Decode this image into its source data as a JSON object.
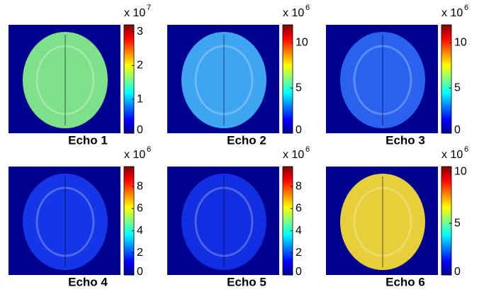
{
  "panels": [
    {
      "label": "Echo 1",
      "exponent_label": "x 10",
      "exponent": "7",
      "clim": [
        0,
        3.2
      ],
      "ticks": [
        0,
        1,
        2,
        3
      ],
      "color": "#7fe08a"
    },
    {
      "label": "Echo 2",
      "exponent_label": "x 10",
      "exponent": "6",
      "clim": [
        0,
        12
      ],
      "ticks": [
        0,
        5,
        10
      ],
      "color": "#3fa4f2"
    },
    {
      "label": "Echo 3",
      "exponent_label": "x 10",
      "exponent": "6",
      "clim": [
        0,
        12
      ],
      "ticks": [
        0,
        5,
        10
      ],
      "color": "#2a62f0"
    },
    {
      "label": "Echo 4",
      "exponent_label": "x 10",
      "exponent": "6",
      "clim": [
        0,
        9.8
      ],
      "ticks": [
        0,
        2,
        4,
        6,
        8
      ],
      "color": "#1436e6"
    },
    {
      "label": "Echo 5",
      "exponent_label": "x 10",
      "exponent": "6",
      "clim": [
        0,
        9.8
      ],
      "ticks": [
        0,
        2,
        4,
        6,
        8
      ],
      "color": "#112fe0"
    },
    {
      "label": "Echo 6",
      "exponent_label": "x 10",
      "exponent": "6",
      "clim": [
        0,
        10.5
      ],
      "ticks": [
        0,
        5,
        10
      ],
      "color": "#e6cf3a"
    }
  ]
}
